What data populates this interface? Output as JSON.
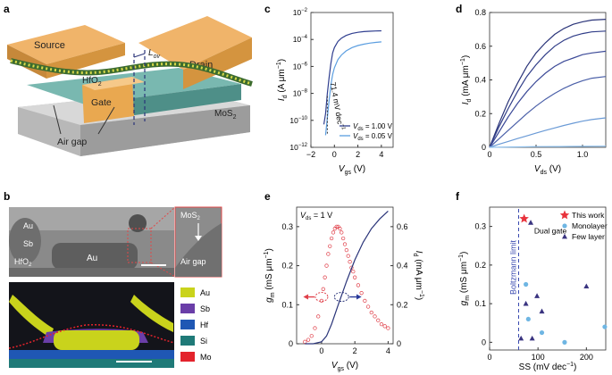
{
  "panels": {
    "a": {
      "label": "a",
      "labels": {
        "source": "Source",
        "drain": "Drain",
        "gate": "Gate",
        "hfo2": "HfO",
        "hfo2_sub": "2",
        "mos2": "MoS",
        "mos2_sub": "2",
        "lov": "L",
        "lov_sub": "ov",
        "air_gap": "Air gap"
      }
    },
    "b": {
      "label": "b",
      "tem_labels": {
        "au_left": "Au",
        "sb": "Sb",
        "hfo2": "HfO",
        "hfo2_sub": "2",
        "au_center": "Au"
      },
      "inset_labels": {
        "mos2": "MoS",
        "mos2_sub": "2",
        "air_gap": "Air gap"
      },
      "legend": [
        {
          "name": "Au",
          "color": "#c9d31c"
        },
        {
          "name": "Sb",
          "color": "#6a3ea8"
        },
        {
          "name": "Hf",
          "color": "#1f57b4"
        },
        {
          "name": "Si",
          "color": "#1f7a78"
        },
        {
          "name": "Mo",
          "color": "#e3232c"
        }
      ]
    },
    "c": {
      "label": "c",
      "ylabel_main": "I",
      "ylabel_sub": "d",
      "ylabel_unit": " (A μm",
      "ylabel_sup": "−1",
      "ylabel_close": ")",
      "xlabel_main": "V",
      "xlabel_sub": "gs",
      "xlabel_unit": " (V)",
      "annotation": "71.4 mV dec",
      "annotation_sup": "−1",
      "chart_data": {
        "type": "line",
        "yscale": "log",
        "xlim": [
          -2,
          5
        ],
        "ylim": [
          1e-12,
          0.01
        ],
        "xticks": [
          "−2",
          "0",
          "2",
          "4"
        ],
        "xtick_values": [
          -2,
          0,
          2,
          4
        ],
        "yticks": [
          "10",
          "10",
          "10",
          "10",
          "10",
          "10"
        ],
        "ytick_exps": [
          "−12",
          "−10",
          "−8",
          "−6",
          "−4",
          "−2"
        ],
        "ytick_values": [
          -12,
          -10,
          -8,
          -6,
          -4,
          -2
        ],
        "series": [
          {
            "name": "V",
            "name_sub": "ds",
            "name_rest": " = 1.00 V",
            "color": "#2f3e8f",
            "x": [
              -0.9,
              -0.75,
              -0.6,
              -0.45,
              -0.3,
              -0.15,
              0,
              0.3,
              0.6,
              1.0,
              1.5,
              2.0,
              2.5,
              3.0,
              3.5,
              4.0
            ],
            "y": [
              -10.3,
              -9.5,
              -8.0,
              -6.8,
              -5.8,
              -5.0,
              -4.6,
              -4.15,
              -3.9,
              -3.7,
              -3.55,
              -3.47,
              -3.42,
              -3.39,
              -3.37,
              -3.36
            ]
          },
          {
            "name": "V",
            "name_sub": "ds",
            "name_rest": " = 0.05 V",
            "color": "#5b9ee0",
            "x": [
              -0.75,
              -0.6,
              -0.45,
              -0.3,
              -0.15,
              0,
              0.3,
              0.6,
              1.0,
              1.5,
              2.0,
              2.5,
              3.0,
              3.5,
              4.0
            ],
            "y": [
              -11.1,
              -9.8,
              -8.5,
              -7.4,
              -6.6,
              -6.1,
              -5.5,
              -5.15,
              -4.85,
              -4.6,
              -4.45,
              -4.35,
              -4.27,
              -4.22,
              -4.18
            ]
          }
        ]
      }
    },
    "d": {
      "label": "d",
      "ylabel_main": "I",
      "ylabel_sub": "d",
      "ylabel_unit": " (mA μm",
      "ylabel_sup": "−1",
      "ylabel_close": ")",
      "xlabel_main": "V",
      "xlabel_sub": "ds",
      "xlabel_unit": " (V)",
      "chart_data": {
        "type": "line",
        "xlim": [
          0,
          1.25
        ],
        "ylim": [
          0,
          0.8
        ],
        "xticks": [
          "0",
          "0.5",
          "1.0"
        ],
        "xtick_values": [
          0,
          0.5,
          1.0
        ],
        "yticks": [
          "0",
          "0.2",
          "0.4",
          "0.6",
          "0.8"
        ],
        "ytick_values": [
          0,
          0.2,
          0.4,
          0.6,
          0.8
        ],
        "series": [
          {
            "color": "#2a3479",
            "x": [
              0,
              0.1,
              0.2,
              0.3,
              0.4,
              0.5,
              0.6,
              0.7,
              0.8,
              0.9,
              1.0,
              1.1,
              1.25
            ],
            "y": [
              0,
              0.14,
              0.27,
              0.38,
              0.48,
              0.56,
              0.62,
              0.67,
              0.705,
              0.73,
              0.745,
              0.755,
              0.76
            ]
          },
          {
            "color": "#303d88",
            "x": [
              0,
              0.1,
              0.2,
              0.3,
              0.4,
              0.5,
              0.6,
              0.7,
              0.8,
              0.9,
              1.0,
              1.1,
              1.25
            ],
            "y": [
              0,
              0.12,
              0.23,
              0.33,
              0.42,
              0.49,
              0.55,
              0.6,
              0.635,
              0.66,
              0.675,
              0.685,
              0.69
            ]
          },
          {
            "color": "#3c4a98",
            "x": [
              0,
              0.1,
              0.2,
              0.3,
              0.4,
              0.5,
              0.6,
              0.7,
              0.8,
              0.9,
              1.0,
              1.1,
              1.25
            ],
            "y": [
              0,
              0.09,
              0.18,
              0.26,
              0.33,
              0.39,
              0.44,
              0.48,
              0.51,
              0.53,
              0.55,
              0.56,
              0.57
            ]
          },
          {
            "color": "#4a5fa8",
            "x": [
              0,
              0.1,
              0.2,
              0.3,
              0.4,
              0.5,
              0.6,
              0.7,
              0.8,
              0.9,
              1.0,
              1.1,
              1.25
            ],
            "y": [
              0,
              0.05,
              0.1,
              0.15,
              0.2,
              0.245,
              0.285,
              0.32,
              0.35,
              0.375,
              0.395,
              0.41,
              0.42
            ]
          },
          {
            "color": "#6a9ad6",
            "x": [
              0,
              0.1,
              0.2,
              0.3,
              0.4,
              0.5,
              0.6,
              0.7,
              0.8,
              0.9,
              1.0,
              1.1,
              1.25
            ],
            "y": [
              0,
              0.018,
              0.035,
              0.052,
              0.068,
              0.084,
              0.1,
              0.115,
              0.13,
              0.143,
              0.155,
              0.165,
              0.175
            ]
          },
          {
            "color": "#8fc0ec",
            "x": [
              0,
              0.25,
              0.5,
              0.75,
              1.0,
              1.25
            ],
            "y": [
              0,
              0.002,
              0.004,
              0.005,
              0.006,
              0.007
            ]
          }
        ]
      }
    },
    "e": {
      "label": "e",
      "vds_label": "V",
      "vds_sub": "ds",
      "vds_rest": " = 1 V",
      "ylabel_main": "g",
      "ylabel_sub": "m",
      "ylabel_unit": " (mS μm",
      "ylabel_sup": "−1",
      "ylabel_close": ")",
      "y2label": "I",
      "y2label_sub": "d",
      "y2label_unit": " (mA μm",
      "y2label_sup": "−1",
      "y2label_close": ")",
      "xlabel_main": "V",
      "xlabel_sub": "gs",
      "xlabel_unit": " (V)",
      "chart_data": {
        "type": "scatter",
        "xlim": [
          -1.5,
          4.3
        ],
        "ylim": [
          0,
          0.35
        ],
        "y2lim": [
          0,
          0.7
        ],
        "xticks": [
          "0",
          "2",
          "4"
        ],
        "xtick_values": [
          0,
          2,
          4
        ],
        "yticks": [
          "0",
          "0.1",
          "0.2",
          "0.3"
        ],
        "ytick_values": [
          0,
          0.1,
          0.2,
          0.3
        ],
        "y2ticks": [
          "0",
          "0.2",
          "0.4",
          "0.6"
        ],
        "y2tick_values": [
          0,
          0.2,
          0.4,
          0.6
        ],
        "series": [
          {
            "name": "gm",
            "color": "#e0404a",
            "x": [
              -1.0,
              -0.8,
              -0.6,
              -0.4,
              -0.2,
              0.0,
              0.1,
              0.2,
              0.3,
              0.4,
              0.5,
              0.6,
              0.7,
              0.8,
              0.9,
              1.0,
              1.1,
              1.2,
              1.3,
              1.4,
              1.5,
              1.6,
              1.7,
              1.8,
              1.9,
              2.0,
              2.2,
              2.4,
              2.6,
              2.8,
              3.0,
              3.2,
              3.4,
              3.6,
              3.8,
              4.0
            ],
            "y": [
              0.005,
              0.01,
              0.02,
              0.04,
              0.07,
              0.11,
              0.14,
              0.17,
              0.2,
              0.23,
              0.25,
              0.27,
              0.285,
              0.295,
              0.3,
              0.3,
              0.295,
              0.285,
              0.27,
              0.255,
              0.24,
              0.225,
              0.21,
              0.195,
              0.185,
              0.17,
              0.15,
              0.13,
              0.11,
              0.095,
              0.08,
              0.07,
              0.06,
              0.05,
              0.045,
              0.04
            ]
          },
          {
            "name": "Id",
            "color": "#2a3479",
            "x": [
              -1.0,
              -0.5,
              0.0,
              0.3,
              0.6,
              1.0,
              1.5,
              2.0,
              2.5,
              3.0,
              3.5,
              4.0
            ],
            "y": [
              0.0,
              0.0,
              0.01,
              0.04,
              0.1,
              0.2,
              0.32,
              0.43,
              0.52,
              0.59,
              0.64,
              0.68
            ]
          }
        ]
      }
    },
    "f": {
      "label": "f",
      "ylabel_main": "g",
      "ylabel_sub": "m",
      "ylabel_unit": " (mS μm",
      "ylabel_sup": "−1",
      "ylabel_close": ")",
      "xlabel": "SS (mV dec",
      "xlabel_sup": "−1",
      "xlabel_close": ")",
      "boltzmann": "Boltzmann limit",
      "dual_gate": "Dual gate",
      "legend": [
        {
          "name": "This work",
          "color": "#e8333c",
          "shape": "star"
        },
        {
          "name": "Monolayer",
          "color": "#6fb6e3",
          "shape": "circle"
        },
        {
          "name": "Few layer",
          "color": "#3a3480",
          "shape": "triangle"
        }
      ],
      "chart_data": {
        "type": "scatter",
        "xlim": [
          0,
          240
        ],
        "ylim": [
          -0.02,
          0.35
        ],
        "xticks": [
          "0",
          "100",
          "200"
        ],
        "xtick_values": [
          0,
          100,
          200
        ],
        "yticks": [
          "0",
          "0.1",
          "0.2",
          "0.3"
        ],
        "ytick_values": [
          0,
          0.1,
          0.2,
          0.3
        ],
        "boltzmann_x": 60,
        "series": [
          {
            "name": "This work",
            "shape": "star",
            "color": "#e8333c",
            "x": [
              71.4
            ],
            "y": [
              0.32
            ]
          },
          {
            "name": "Monolayer",
            "shape": "circle",
            "color": "#6fb6e3",
            "x": [
              75,
              80,
              108,
              155,
              238
            ],
            "y": [
              0.15,
              0.06,
              0.025,
              0.0,
              0.04
            ]
          },
          {
            "name": "Few layer",
            "shape": "triangle",
            "color": "#3a3480",
            "x": [
              65,
              75,
              88,
              98,
              108,
              200,
              85
            ],
            "y": [
              0.01,
              0.1,
              0.01,
              0.12,
              0.08,
              0.145,
              0.31
            ]
          }
        ]
      }
    }
  }
}
